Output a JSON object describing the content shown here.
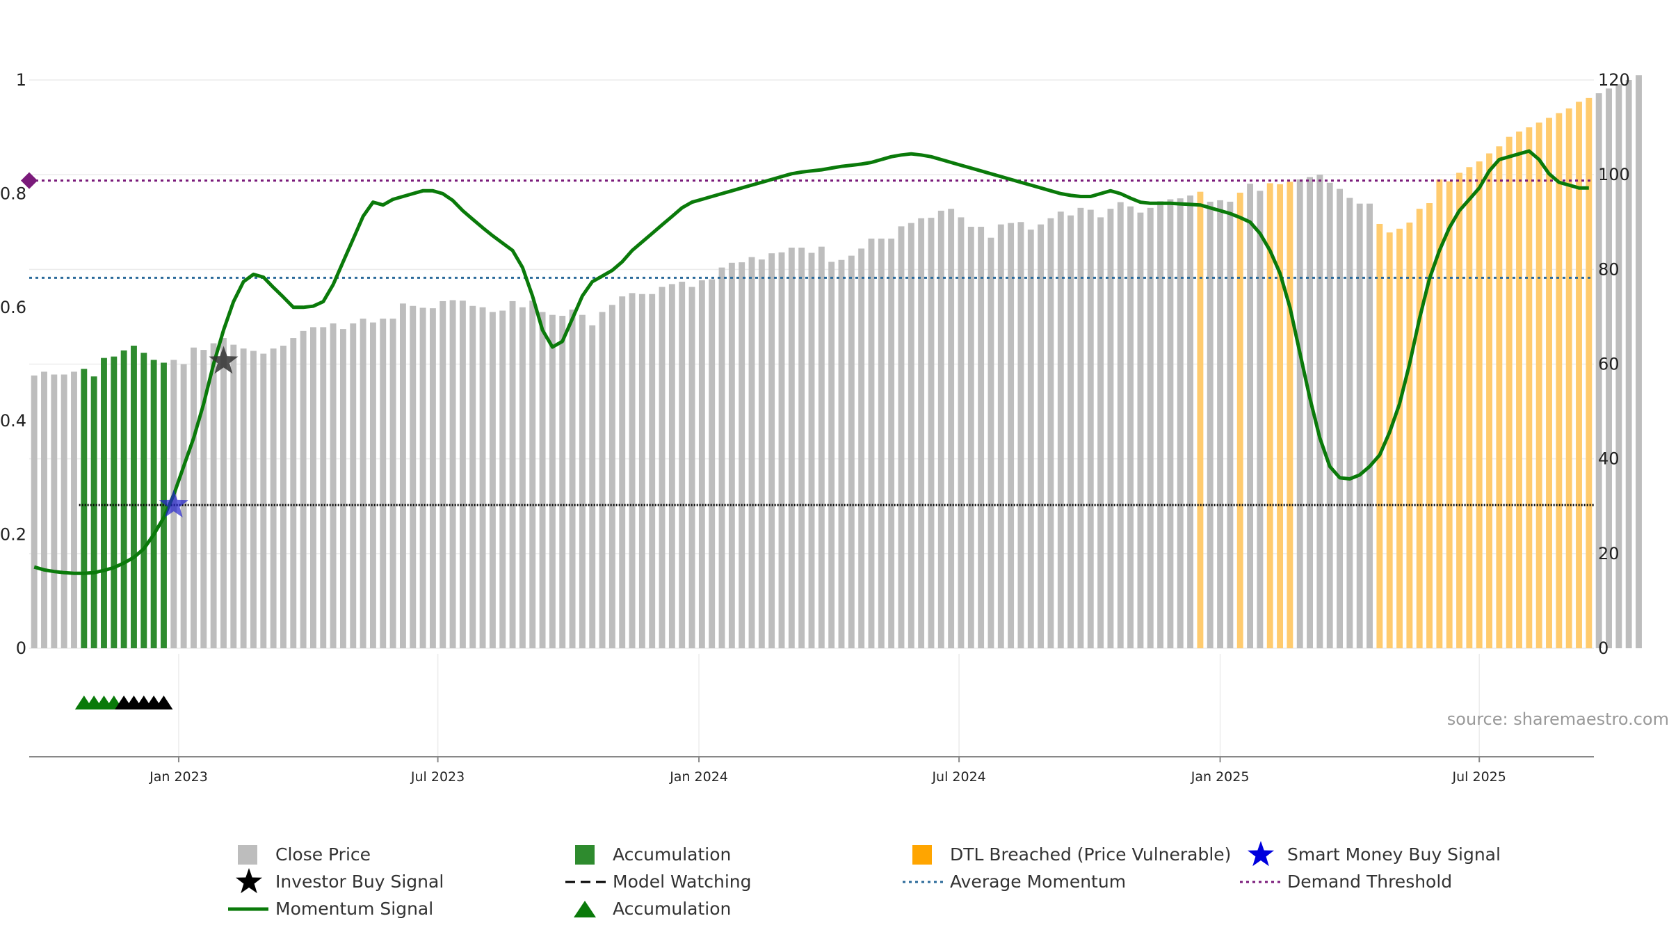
{
  "chart_data": {
    "type": "bar",
    "title": "",
    "source_label": "source: sharemaestro.com",
    "left_axis": {
      "range": [
        0,
        1
      ],
      "ticks": [
        0,
        0.2,
        0.4,
        0.6,
        0.8,
        1
      ],
      "tick_labels": [
        "0",
        "0.2",
        "0.4",
        "0.6",
        "0.8",
        "1"
      ]
    },
    "right_axis": {
      "range": [
        0,
        120
      ],
      "ticks": [
        0,
        20,
        40,
        60,
        80,
        100,
        120
      ],
      "tick_labels": [
        "0",
        "20",
        "40",
        "60",
        "80",
        "100",
        "120"
      ]
    },
    "x_axis": {
      "start_week": 0,
      "end_week": 157,
      "ticks": [
        {
          "label": "Jan 2023",
          "week": 14.5
        },
        {
          "label": "Jul 2023",
          "week": 40.5
        },
        {
          "label": "Jan 2024",
          "week": 66.7
        },
        {
          "label": "Jul 2024",
          "week": 92.8
        },
        {
          "label": "Jan 2025",
          "week": 119.0
        },
        {
          "label": "Jul 2025",
          "week": 145.0
        }
      ]
    },
    "close_price": [
      57.6,
      58.4,
      57.8,
      57.8,
      58.4,
      59.0,
      57.4,
      61.3,
      61.6,
      62.9,
      63.9,
      62.4,
      60.9,
      60.3,
      60.9,
      60.0,
      63.5,
      63.0,
      64.4,
      65.5,
      64.1,
      63.3,
      62.8,
      62.2,
      63.3,
      63.9,
      65.5,
      67.0,
      67.8,
      67.8,
      68.6,
      67.4,
      68.6,
      69.6,
      68.8,
      69.6,
      69.6,
      72.8,
      72.3,
      71.9,
      71.8,
      73.3,
      73.5,
      73.4,
      72.3,
      72.0,
      71.0,
      71.3,
      73.3,
      72.0,
      73.4,
      71.0,
      70.4,
      70.2,
      71.5,
      70.4,
      68.2,
      71.0,
      72.5,
      74.3,
      75.0,
      74.8,
      74.8,
      76.3,
      76.9,
      77.4,
      76.3,
      77.7,
      77.9,
      80.4,
      81.4,
      81.5,
      82.6,
      82.1,
      83.4,
      83.6,
      84.6,
      84.6,
      83.5,
      84.8,
      81.6,
      82.0,
      82.9,
      84.4,
      86.5,
      86.5,
      86.5,
      89.1,
      89.8,
      90.8,
      90.9,
      92.4,
      92.8,
      91.0,
      89.0,
      89.0,
      86.7,
      89.5,
      89.8,
      90.0,
      88.4,
      89.5,
      90.8,
      92.2,
      91.4,
      93.0,
      92.6,
      91.0,
      92.8,
      94.2,
      93.3,
      92.0,
      93.0,
      94.4,
      94.8,
      95.0,
      95.6,
      96.4,
      94.3,
      94.6,
      94.3,
      96.2,
      98.1,
      96.6,
      98.2,
      98.0,
      98.5,
      99.0,
      99.5,
      100.0,
      98.3,
      97.0,
      95.1,
      93.9,
      93.9,
      89.6,
      87.8,
      88.6,
      89.9,
      92.8,
      94.0,
      99.0,
      98.6,
      100.4,
      101.6,
      102.8,
      104.5,
      106.0,
      108.0,
      109.1,
      110.0,
      111.0,
      112.0,
      113.0,
      114.0,
      115.4,
      116.2,
      117.2,
      118.2,
      119.1,
      120.0,
      121.0
    ],
    "bar_colors": {
      "default": "#bdbdbd",
      "accumulation": "#2e8b2e",
      "dtl_breached": "#ffcb6e"
    },
    "accumulation_weeks": [
      5,
      6,
      7,
      8,
      9,
      10,
      11,
      12,
      13
    ],
    "dtl_breached_weeks": [
      117,
      121,
      124,
      125,
      126,
      135,
      136,
      137,
      138,
      139,
      140,
      141,
      142,
      143,
      144,
      145,
      146,
      147,
      148,
      149,
      150,
      151,
      152,
      153,
      154,
      155,
      156
    ],
    "momentum_signal": {
      "name": "Momentum Signal",
      "color": "#0a7a0a",
      "points": [
        [
          0,
          0.143
        ],
        [
          1,
          0.138
        ],
        [
          2,
          0.135
        ],
        [
          3,
          0.133
        ],
        [
          4,
          0.132
        ],
        [
          5,
          0.132
        ],
        [
          6,
          0.133
        ],
        [
          7,
          0.137
        ],
        [
          8,
          0.142
        ],
        [
          9,
          0.15
        ],
        [
          10,
          0.16
        ],
        [
          11,
          0.175
        ],
        [
          12,
          0.2
        ],
        [
          13,
          0.23
        ],
        [
          14,
          0.27
        ],
        [
          15,
          0.32
        ],
        [
          16,
          0.37
        ],
        [
          17,
          0.43
        ],
        [
          18,
          0.5
        ],
        [
          19,
          0.56
        ],
        [
          20,
          0.61
        ],
        [
          21,
          0.645
        ],
        [
          22,
          0.658
        ],
        [
          23,
          0.653
        ],
        [
          24,
          0.635
        ],
        [
          25,
          0.618
        ],
        [
          26,
          0.6
        ],
        [
          27,
          0.6
        ],
        [
          28,
          0.602
        ],
        [
          29,
          0.61
        ],
        [
          30,
          0.64
        ],
        [
          31,
          0.68
        ],
        [
          32,
          0.72
        ],
        [
          33,
          0.76
        ],
        [
          34,
          0.785
        ],
        [
          35,
          0.78
        ],
        [
          36,
          0.79
        ],
        [
          37,
          0.795
        ],
        [
          38,
          0.8
        ],
        [
          39,
          0.805
        ],
        [
          40,
          0.805
        ],
        [
          41,
          0.8
        ],
        [
          42,
          0.788
        ],
        [
          43,
          0.77
        ],
        [
          44,
          0.755
        ],
        [
          45,
          0.74
        ],
        [
          46,
          0.726
        ],
        [
          47,
          0.713
        ],
        [
          48,
          0.7
        ],
        [
          49,
          0.67
        ],
        [
          50,
          0.62
        ],
        [
          51,
          0.56
        ],
        [
          52,
          0.53
        ],
        [
          53,
          0.54
        ],
        [
          54,
          0.58
        ],
        [
          55,
          0.62
        ],
        [
          56,
          0.645
        ],
        [
          57,
          0.655
        ],
        [
          58,
          0.665
        ],
        [
          59,
          0.68
        ],
        [
          60,
          0.7
        ],
        [
          61,
          0.715
        ],
        [
          62,
          0.73
        ],
        [
          63,
          0.745
        ],
        [
          64,
          0.76
        ],
        [
          65,
          0.775
        ],
        [
          66,
          0.785
        ],
        [
          67,
          0.79
        ],
        [
          68,
          0.795
        ],
        [
          69,
          0.8
        ],
        [
          70,
          0.805
        ],
        [
          71,
          0.81
        ],
        [
          72,
          0.815
        ],
        [
          73,
          0.82
        ],
        [
          74,
          0.825
        ],
        [
          75,
          0.83
        ],
        [
          76,
          0.835
        ],
        [
          77,
          0.838
        ],
        [
          78,
          0.84
        ],
        [
          79,
          0.842
        ],
        [
          80,
          0.845
        ],
        [
          81,
          0.848
        ],
        [
          82,
          0.85
        ],
        [
          83,
          0.852
        ],
        [
          84,
          0.855
        ],
        [
          85,
          0.86
        ],
        [
          86,
          0.865
        ],
        [
          87,
          0.868
        ],
        [
          88,
          0.87
        ],
        [
          89,
          0.868
        ],
        [
          90,
          0.865
        ],
        [
          91,
          0.86
        ],
        [
          92,
          0.855
        ],
        [
          93,
          0.85
        ],
        [
          94,
          0.845
        ],
        [
          95,
          0.84
        ],
        [
          96,
          0.835
        ],
        [
          97,
          0.83
        ],
        [
          98,
          0.825
        ],
        [
          99,
          0.82
        ],
        [
          100,
          0.815
        ],
        [
          101,
          0.81
        ],
        [
          102,
          0.805
        ],
        [
          103,
          0.8
        ],
        [
          104,
          0.797
        ],
        [
          105,
          0.795
        ],
        [
          106,
          0.795
        ],
        [
          107,
          0.8
        ],
        [
          108,
          0.805
        ],
        [
          109,
          0.8
        ],
        [
          110,
          0.792
        ],
        [
          111,
          0.785
        ],
        [
          112,
          0.783
        ],
        [
          113,
          0.783
        ],
        [
          114,
          0.783
        ],
        [
          115,
          0.782
        ],
        [
          116,
          0.781
        ],
        [
          117,
          0.78
        ],
        [
          118,
          0.775
        ],
        [
          119,
          0.77
        ],
        [
          120,
          0.765
        ],
        [
          121,
          0.758
        ],
        [
          122,
          0.75
        ],
        [
          123,
          0.73
        ],
        [
          124,
          0.7
        ],
        [
          125,
          0.66
        ],
        [
          126,
          0.6
        ],
        [
          127,
          0.52
        ],
        [
          128,
          0.44
        ],
        [
          129,
          0.37
        ],
        [
          130,
          0.32
        ],
        [
          131,
          0.3
        ],
        [
          132,
          0.298
        ],
        [
          133,
          0.305
        ],
        [
          134,
          0.32
        ],
        [
          135,
          0.34
        ],
        [
          136,
          0.38
        ],
        [
          137,
          0.43
        ],
        [
          138,
          0.5
        ],
        [
          139,
          0.58
        ],
        [
          140,
          0.65
        ],
        [
          141,
          0.7
        ],
        [
          142,
          0.74
        ],
        [
          143,
          0.77
        ],
        [
          144,
          0.79
        ],
        [
          145,
          0.81
        ],
        [
          146,
          0.84
        ],
        [
          147,
          0.86
        ],
        [
          148,
          0.865
        ],
        [
          149,
          0.87
        ],
        [
          150,
          0.875
        ],
        [
          151,
          0.86
        ],
        [
          152,
          0.835
        ],
        [
          153,
          0.82
        ],
        [
          154,
          0.815
        ],
        [
          155,
          0.81
        ],
        [
          156,
          0.81
        ]
      ]
    },
    "demand_threshold": {
      "name": "Demand Threshold",
      "value": 0.823,
      "color": "#7a1a7a"
    },
    "average_momentum": {
      "name": "Average Momentum",
      "value": 0.652,
      "color": "#2a6a9a"
    },
    "model_watching": {
      "name": "Model Watching",
      "value": 0.252,
      "start_week": 5,
      "color": "#000000"
    },
    "investor_buy_signal": {
      "name": "Investor Buy Signal",
      "week": 19,
      "value": 0.505,
      "color": "#333333"
    },
    "smart_money_buy_signal": {
      "name": "Smart Money Buy Signal",
      "week": 14,
      "value": 0.252,
      "color": "#2222cc"
    },
    "accumulation_triangles": {
      "green_weeks": [
        5,
        6,
        7,
        8
      ],
      "black_weeks": [
        9,
        10,
        11,
        12,
        13
      ]
    },
    "legend": [
      {
        "label": "Close Price",
        "symbol": "square",
        "color": "#bdbdbd"
      },
      {
        "label": "Accumulation",
        "symbol": "square",
        "color": "#2e8b2e"
      },
      {
        "label": "DTL Breached (Price Vulnerable)",
        "symbol": "square",
        "color": "#ffa500"
      },
      {
        "label": "Smart Money Buy Signal",
        "symbol": "star",
        "color": "#0000dd"
      },
      {
        "label": "Investor Buy Signal",
        "symbol": "star",
        "color": "#000000"
      },
      {
        "label": "Model Watching",
        "symbol": "dash",
        "color": "#000000"
      },
      {
        "label": "Average Momentum",
        "symbol": "dot",
        "color": "#2a6a9a"
      },
      {
        "label": "Demand Threshold",
        "symbol": "dot",
        "color": "#7a1a7a"
      },
      {
        "label": "Momentum Signal",
        "symbol": "line",
        "color": "#0a7a0a"
      },
      {
        "label": "Accumulation",
        "symbol": "triangle",
        "color": "#0a7a0a"
      }
    ]
  }
}
